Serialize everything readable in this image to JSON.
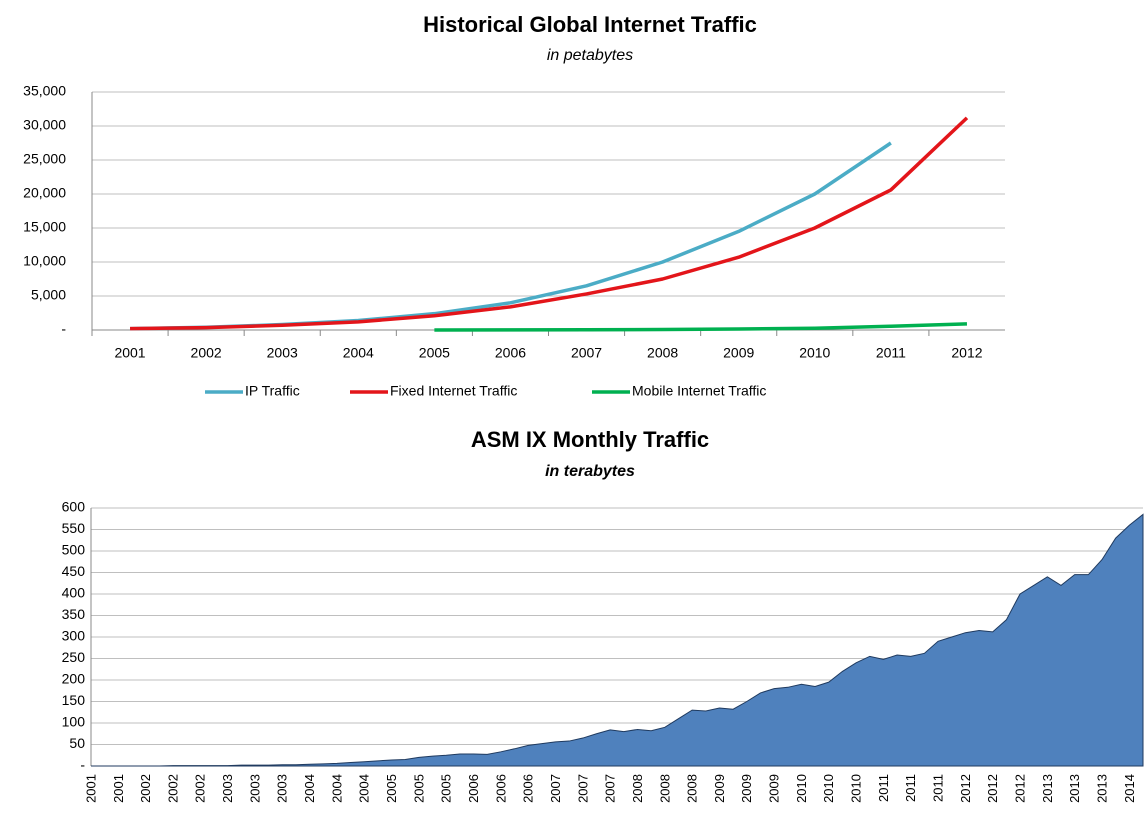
{
  "chart_data": [
    {
      "type": "line",
      "title": "Historical Global Internet Traffic",
      "subtitle": "in petabytes",
      "categories": [
        "2001",
        "2002",
        "2003",
        "2004",
        "2005",
        "2006",
        "2007",
        "2008",
        "2009",
        "2010",
        "2011",
        "2012"
      ],
      "series": [
        {
          "name": "IP Traffic",
          "color": "#4bacc6",
          "values": [
            200,
            400,
            800,
            1400,
            2400,
            4000,
            6500,
            10000,
            14500,
            20000,
            27500,
            null
          ]
        },
        {
          "name": "Fixed Internet Traffic",
          "color": "#e3151a",
          "values": [
            200,
            350,
            700,
            1200,
            2100,
            3400,
            5300,
            7500,
            10700,
            15000,
            20600,
            31200
          ]
        },
        {
          "name": "Mobile Internet Traffic",
          "color": "#00b050",
          "values": [
            null,
            null,
            null,
            null,
            0,
            10,
            30,
            70,
            150,
            250,
            550,
            900
          ]
        }
      ],
      "ylim": [
        0,
        35000
      ],
      "yticks": [
        {
          "value": 0,
          "label": "-"
        },
        {
          "value": 5000,
          "label": "5,000"
        },
        {
          "value": 10000,
          "label": "10,000"
        },
        {
          "value": 15000,
          "label": "15,000"
        },
        {
          "value": 20000,
          "label": "20,000"
        },
        {
          "value": 25000,
          "label": "25,000"
        },
        {
          "value": 30000,
          "label": "30,000"
        },
        {
          "value": 35000,
          "label": "35,000"
        }
      ],
      "grid": true,
      "legend": "bottom"
    },
    {
      "type": "area",
      "title": "ASM IX Monthly Traffic",
      "subtitle": "in terabytes",
      "categories": [
        "2001",
        null,
        "2001",
        null,
        "2002",
        null,
        "2002",
        null,
        "2002",
        null,
        "2003",
        null,
        "2003",
        null,
        "2003",
        null,
        "2004",
        null,
        "2004",
        null,
        "2004",
        null,
        "2005",
        null,
        "2005",
        null,
        "2005",
        null,
        "2006",
        null,
        "2006",
        null,
        "2006",
        null,
        "2007",
        null,
        "2007",
        null,
        "2007",
        null,
        "2008",
        null,
        "2008",
        null,
        "2008",
        null,
        "2009",
        null,
        "2009",
        null,
        "2009",
        null,
        "2010",
        null,
        "2010",
        null,
        "2010",
        null,
        "2011",
        null,
        "2011",
        null,
        "2011",
        null,
        "2012",
        null,
        "2012",
        null,
        "2012",
        null,
        "2013",
        null,
        "2013",
        null,
        "2013",
        null,
        "2014",
        null
      ],
      "values": [
        0,
        0,
        0,
        0,
        0,
        0,
        1,
        1,
        1,
        1,
        1,
        2,
        2,
        2,
        3,
        3,
        4,
        5,
        6,
        8,
        10,
        12,
        14,
        15,
        20,
        23,
        25,
        28,
        28,
        27,
        33,
        40,
        48,
        52,
        56,
        58,
        65,
        75,
        84,
        80,
        85,
        82,
        90,
        110,
        130,
        128,
        135,
        132,
        150,
        170,
        180,
        183,
        190,
        185,
        195,
        220,
        240,
        255,
        248,
        258,
        255,
        262,
        290,
        300,
        310,
        315,
        312,
        340,
        400,
        420,
        440,
        420,
        445,
        445,
        480,
        530,
        560,
        585
      ],
      "color": "#4f81bd",
      "ylim": [
        0,
        600
      ],
      "yticks": [
        {
          "value": 0,
          "label": "-"
        },
        50,
        100,
        150,
        200,
        250,
        300,
        350,
        400,
        450,
        500,
        550,
        600
      ],
      "grid": true
    }
  ]
}
